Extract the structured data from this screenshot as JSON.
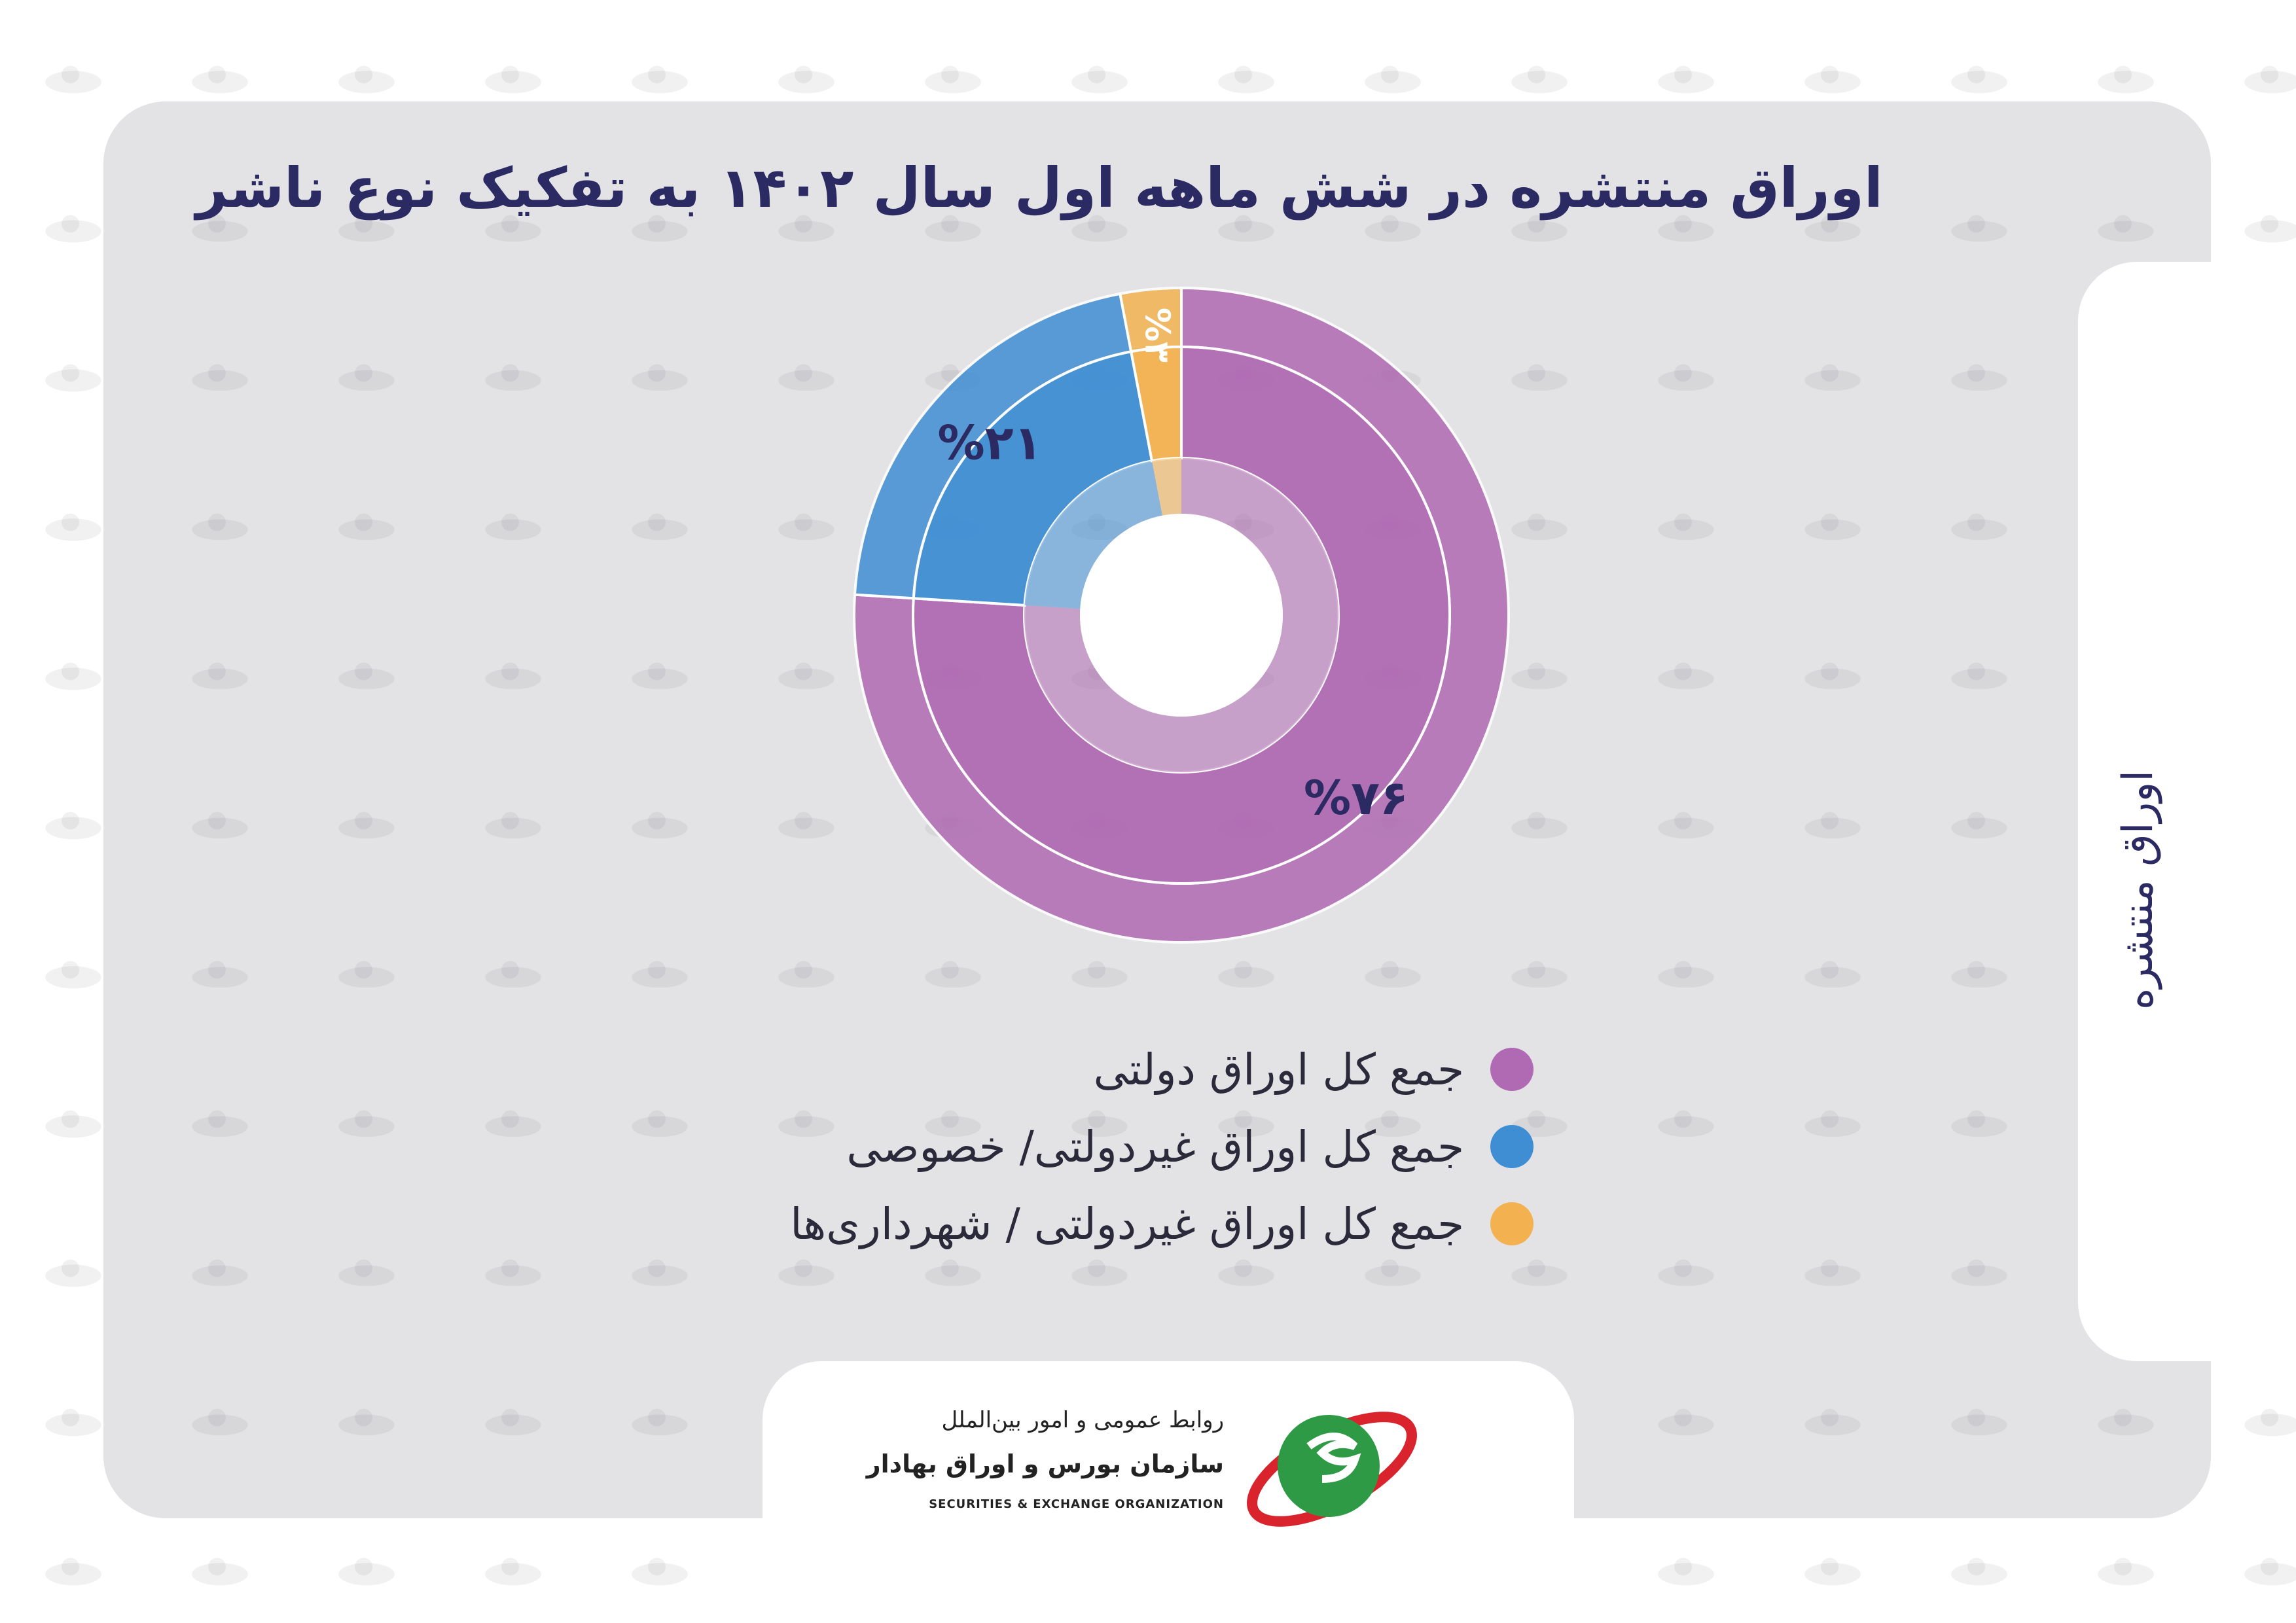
{
  "title": "اوراق منتشره در شش ماهه اول سال ۱۴۰۲ به تفکیک نوع ناشر",
  "side_label": "اوراق منتشره",
  "colors": {
    "card_bg": "#e3e3e6",
    "title": "#2c2a63",
    "government": "#b06ab3",
    "private": "#3f8ed3",
    "municipal": "#f3b24f",
    "label_text": "#2c2a63"
  },
  "chart_data": {
    "type": "pie",
    "style": "donut",
    "categories": [
      "جمع کل اوراق دولتی",
      "جمع کل اوراق غیردولتی/ خصوصی",
      "جمع کل اوراق غیردولتی / شهرداری‌ها"
    ],
    "values": [
      76,
      21,
      3
    ],
    "data_labels": [
      "%۷۶",
      "%۲۱",
      "%۳"
    ],
    "legend_position": "bottom"
  },
  "legend": [
    {
      "label": "جمع کل اوراق دولتی",
      "color": "#b06ab3"
    },
    {
      "label": "جمع کل اوراق غیردولتی/ خصوصی",
      "color": "#3f8ed3"
    },
    {
      "label": "جمع کل اوراق غیردولتی / شهرداری‌ها",
      "color": "#f3b24f"
    }
  ],
  "footer": {
    "line1": "روابط عمومی و امور بین‌الملل",
    "line2": "سازمان بورس و اوراق بهادار",
    "line3": "SECURITIES & EXCHANGE ORGANIZATION",
    "logo_icon": "seo-logo-icon"
  }
}
